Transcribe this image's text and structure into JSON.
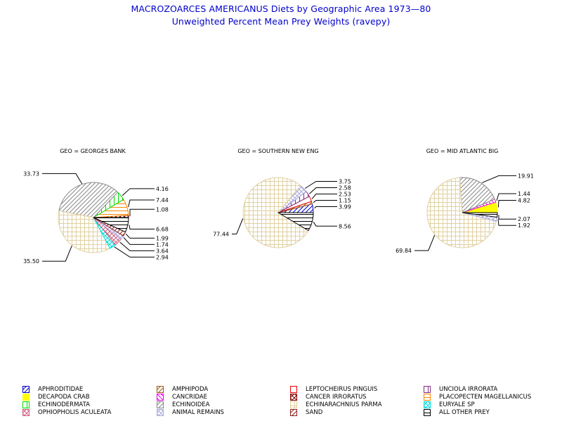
{
  "chart_data": {
    "type": "pie",
    "title": "MACROZOARCES AMERICANUS Diets by Geographic Area 1973—80",
    "subtitle": "Unweighted Percent Mean Prey Weights (ravepy)",
    "pies": [
      {
        "geo_label": "GEO = GEORGES BANK",
        "slices": [
          {
            "category": "CANCER IRRORATUS",
            "value": 1.08,
            "label": "1.08"
          },
          {
            "category": "PLACOPECTEN MAGELLANICUS",
            "value": 7.44,
            "label": "7.44"
          },
          {
            "category": "ECHINODERMATA",
            "value": 4.16,
            "label": "4.16"
          },
          {
            "category": "ECHINOIDEA",
            "value": 33.73,
            "label": "33.73"
          },
          {
            "category": "ECHINARACHNIUS PARMA",
            "value": 35.5,
            "label": "35.50"
          },
          {
            "category": "EURYALE SP",
            "value": 2.94,
            "label": "2.94"
          },
          {
            "category": "OPHIOPHOLIS ACULEATA",
            "value": 3.64,
            "label": "3.64"
          },
          {
            "category": "ANIMAL REMAINS",
            "value": 1.74,
            "label": "1.74"
          },
          {
            "category": "SAND",
            "value": 1.99,
            "label": "1.99"
          },
          {
            "category": "ALL OTHER PREY",
            "value": 6.68,
            "label": "6.68"
          }
        ]
      },
      {
        "geo_label": "GEO = SOUTHERN  NEW ENG",
        "slices": [
          {
            "category": "APHRODITIDAE",
            "value": 3.99,
            "label": "3.99"
          },
          {
            "category": "AMPHIPODA",
            "value": 1.15,
            "label": "1.15"
          },
          {
            "category": "LEPTOCHEIRUS PINGUIS",
            "value": 2.53,
            "label": "2.53"
          },
          {
            "category": "UNCIOLA IRRORATA",
            "value": 2.58,
            "label": "2.58"
          },
          {
            "category": "ANIMAL REMAINS",
            "value": 3.75,
            "label": "3.75"
          },
          {
            "category": "ECHINARACHNIUS PARMA",
            "value": 77.44,
            "label": "77.44"
          },
          {
            "category": "ALL OTHER PREY",
            "value": 8.56,
            "label": "8.56"
          }
        ]
      },
      {
        "geo_label": "GEO = MID  ATLANTIC  BIG",
        "slices": [
          {
            "category": "DECAPODA CRAB",
            "value": 4.82,
            "label": "4.82"
          },
          {
            "category": "CANCRIDAE",
            "value": 1.44,
            "label": "1.44"
          },
          {
            "category": "ECHINOIDEA",
            "value": 19.91,
            "label": "19.91"
          },
          {
            "category": "ECHINARACHNIUS PARMA",
            "value": 69.84,
            "label": "69.84"
          },
          {
            "category": "ANIMAL REMAINS",
            "value": 1.92,
            "label": "1.92"
          },
          {
            "category": "ALL OTHER PREY",
            "value": 2.07,
            "label": "2.07"
          }
        ]
      }
    ],
    "legend": {
      "placement": "bottom",
      "columns": [
        [
          "APHRODITIDAE",
          "DECAPODA CRAB",
          "ECHINODERMATA",
          "OPHIOPHOLIS ACULEATA"
        ],
        [
          "AMPHIPODA",
          "CANCRIDAE",
          "ECHINOIDEA",
          "ANIMAL REMAINS"
        ],
        [
          "LEPTOCHEIRUS PINGUIS",
          "CANCER IRRORATUS",
          "ECHINARACHNIUS PARMA",
          "SAND"
        ],
        [
          "UNCIOLA IRRORATA",
          "PLACOPECTEN MAGELLANICUS",
          "EURYALE SP",
          "ALL OTHER PREY"
        ]
      ]
    },
    "styles": {
      "APHRODITIDAE": {
        "color": "#0000cc",
        "pattern": "diag-fwd"
      },
      "DECAPODA CRAB": {
        "color": "#ffff00",
        "pattern": "solid"
      },
      "ECHINODERMATA": {
        "color": "#00dd00",
        "pattern": "vertical"
      },
      "OPHIOPHOLIS ACULEATA": {
        "color": "#d06080",
        "pattern": "crosshatch-diag"
      },
      "AMPHIPODA": {
        "color": "#a05a10",
        "pattern": "diag-fwd"
      },
      "CANCRIDAE": {
        "color": "#ee00ee",
        "pattern": "diag-back"
      },
      "ECHINOIDEA": {
        "color": "#888888",
        "pattern": "diag-fwd"
      },
      "ANIMAL REMAINS": {
        "color": "#aaaadd",
        "pattern": "crosshatch-diag"
      },
      "LEPTOCHEIRUS PINGUIS": {
        "color": "#ee0000",
        "pattern": "empty"
      },
      "CANCER IRRORATUS": {
        "color": "#800000",
        "pattern": "crosshatch-diag"
      },
      "ECHINARACHNIUS PARMA": {
        "color": "#e0d0a0",
        "pattern": "grid"
      },
      "SAND": {
        "color": "#902020",
        "pattern": "diag-fwd"
      },
      "UNCIOLA IRRORATA": {
        "color": "#803080",
        "pattern": "vertical"
      },
      "PLACOPECTEN MAGELLANICUS": {
        "color": "#ff8800",
        "pattern": "horizontal"
      },
      "EURYALE SP": {
        "color": "#00dddd",
        "pattern": "crosshatch-diag"
      },
      "ALL OTHER PREY": {
        "color": "#000000",
        "pattern": "horizontal"
      }
    },
    "title_color": "#0000cc"
  }
}
